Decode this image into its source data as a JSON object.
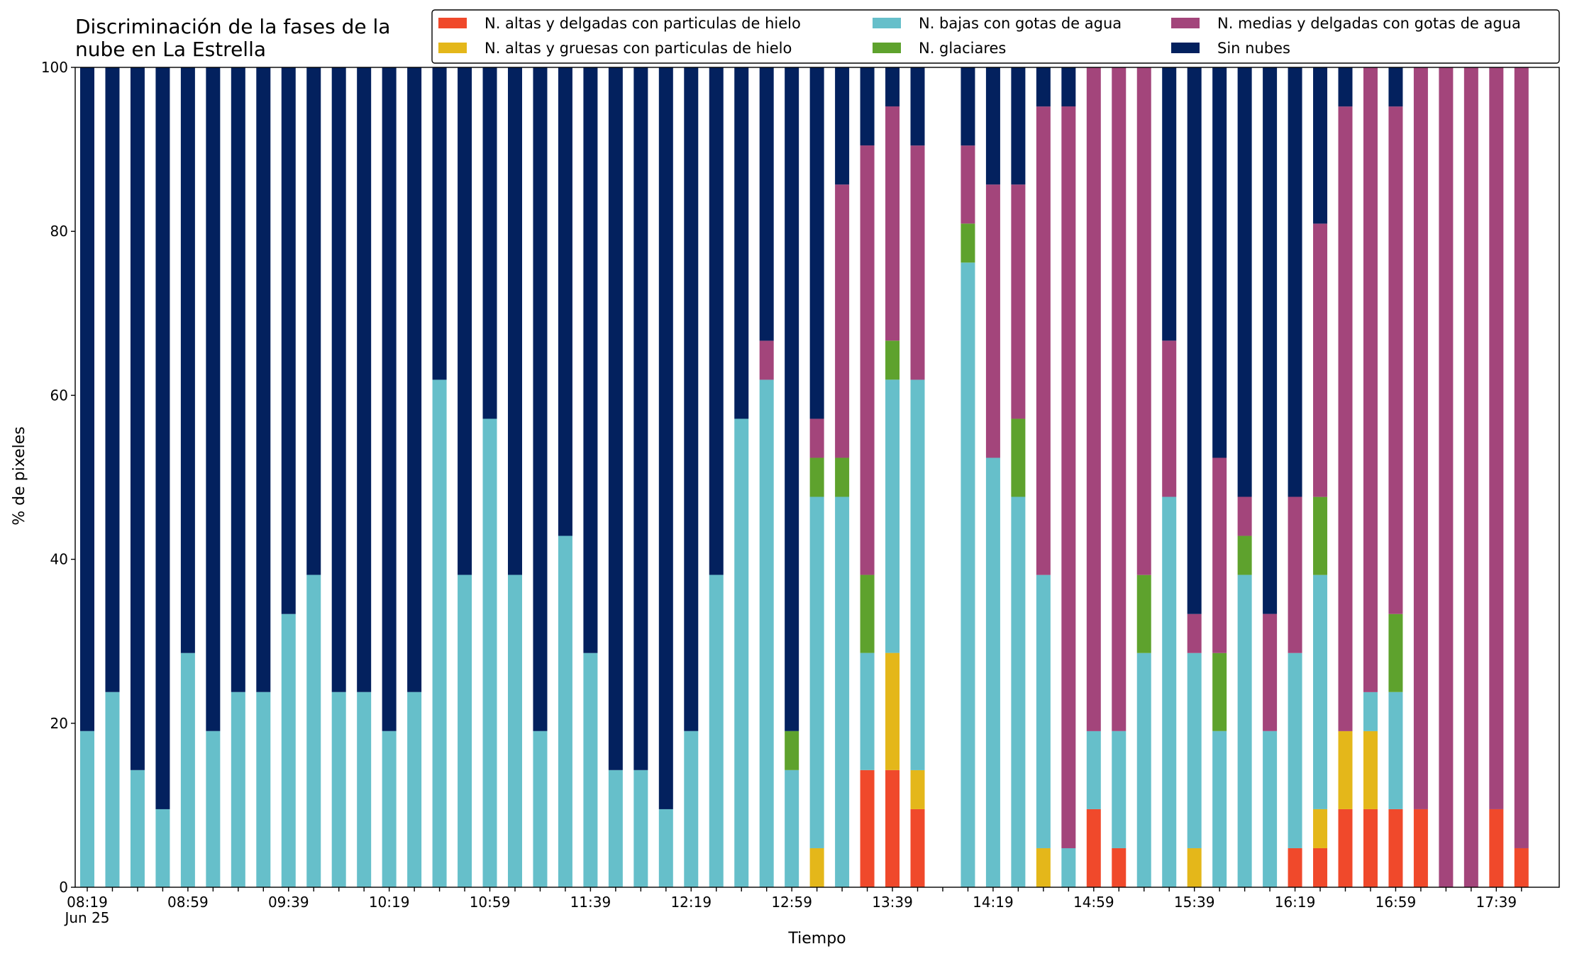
{
  "chart_data": {
    "type": "stacked_bar",
    "title": "Discriminación de la fases de la nube en La Estrella",
    "x_label": "Tiempo",
    "y_label": "% de pixeles",
    "x_sublabel": "Jun 25",
    "categories": [
      "08:19",
      null,
      null,
      null,
      "08:59",
      null,
      null,
      null,
      "09:39",
      null,
      null,
      null,
      "10:19",
      null,
      null,
      null,
      "10:59",
      null,
      null,
      null,
      "11:39",
      null,
      null,
      null,
      "12:19",
      null,
      null,
      null,
      "12:59",
      null,
      null,
      null,
      "13:39",
      null,
      null,
      null,
      "14:19",
      null,
      null,
      null,
      "14:59",
      null,
      null,
      null,
      "15:39",
      null,
      null,
      null,
      "16:19",
      null,
      null,
      null,
      "16:59",
      null,
      null,
      null,
      "17:39",
      null
    ],
    "ylim": [
      0,
      100
    ],
    "yticks": [
      0,
      20,
      40,
      60,
      80,
      100
    ],
    "legend": "top-right",
    "series": [
      {
        "name": "N. altas y delgadas con particulas de hielo",
        "color": "#f0492b",
        "values": [
          0,
          0,
          0,
          0,
          0,
          0,
          0,
          0,
          0,
          0,
          0,
          0,
          0,
          0,
          0,
          0,
          0,
          0,
          0,
          0,
          0,
          0,
          0,
          0,
          0,
          0,
          0,
          0,
          0,
          0,
          0,
          14.29,
          14.29,
          9.52,
          null,
          0,
          0,
          0,
          0,
          0,
          9.52,
          4.76,
          0,
          0,
          0,
          0,
          0,
          0,
          4.76,
          4.76,
          9.52,
          9.52,
          9.52,
          9.52,
          0,
          0,
          9.52,
          4.76
        ]
      },
      {
        "name": "N. altas y gruesas con particulas de hielo",
        "color": "#e4b71a",
        "values": [
          0,
          0,
          0,
          0,
          0,
          0,
          0,
          0,
          0,
          0,
          0,
          0,
          0,
          0,
          0,
          0,
          0,
          0,
          0,
          0,
          0,
          0,
          0,
          0,
          0,
          0,
          0,
          0,
          0,
          4.76,
          0,
          0,
          14.29,
          4.76,
          null,
          0,
          0,
          0,
          4.76,
          0,
          0,
          0,
          0,
          0,
          4.76,
          0,
          0,
          0,
          0,
          4.76,
          9.52,
          9.52,
          0,
          0,
          0,
          0,
          0,
          0
        ]
      },
      {
        "name": "N. bajas con gotas de agua",
        "color": "#66bfca",
        "values": [
          19.05,
          23.81,
          14.29,
          9.52,
          28.57,
          19.05,
          23.81,
          23.81,
          33.33,
          38.1,
          23.81,
          23.81,
          19.05,
          23.81,
          61.9,
          38.1,
          57.14,
          38.1,
          19.05,
          42.86,
          28.57,
          14.29,
          14.29,
          9.52,
          19.05,
          38.1,
          57.14,
          61.9,
          14.29,
          42.86,
          47.62,
          14.29,
          33.33,
          47.62,
          null,
          76.19,
          52.38,
          47.62,
          33.33,
          4.76,
          9.52,
          14.29,
          28.57,
          47.62,
          23.81,
          19.05,
          38.1,
          19.05,
          23.81,
          28.57,
          0,
          4.76,
          14.29,
          0,
          0,
          0,
          0,
          0
        ]
      },
      {
        "name": "N. glaciares",
        "color": "#5ea22d",
        "values": [
          0,
          0,
          0,
          0,
          0,
          0,
          0,
          0,
          0,
          0,
          0,
          0,
          0,
          0,
          0,
          0,
          0,
          0,
          0,
          0,
          0,
          0,
          0,
          0,
          0,
          0,
          0,
          0,
          4.76,
          4.76,
          4.76,
          9.52,
          4.76,
          0,
          null,
          4.76,
          0,
          9.52,
          0,
          0,
          0,
          0,
          9.52,
          0,
          0,
          9.52,
          4.76,
          0,
          0,
          9.52,
          0,
          0,
          9.52,
          0,
          0,
          0,
          0,
          0
        ]
      },
      {
        "name": "N. medias y delgadas con gotas de agua",
        "color": "#a3457b",
        "values": [
          0,
          0,
          0,
          0,
          0,
          0,
          0,
          0,
          0,
          0,
          0,
          0,
          0,
          0,
          0,
          0,
          0,
          0,
          0,
          0,
          0,
          0,
          0,
          0,
          0,
          0,
          0,
          4.76,
          0,
          4.76,
          33.33,
          52.38,
          28.57,
          28.57,
          null,
          9.52,
          33.33,
          28.57,
          57.14,
          90.48,
          80.95,
          80.95,
          61.9,
          19.05,
          4.76,
          23.81,
          4.76,
          14.29,
          19.05,
          33.33,
          76.19,
          76.19,
          61.9,
          90.48,
          100,
          100,
          90.48,
          95.24
        ]
      },
      {
        "name": "Sin nubes",
        "color": "#03215e",
        "values": [
          80.95,
          76.19,
          85.71,
          90.48,
          71.43,
          80.95,
          76.19,
          76.19,
          66.67,
          61.9,
          76.19,
          76.19,
          80.95,
          76.19,
          38.1,
          61.9,
          42.86,
          61.9,
          80.95,
          57.14,
          71.43,
          85.71,
          85.71,
          90.48,
          80.95,
          61.9,
          42.86,
          33.33,
          80.95,
          42.86,
          14.29,
          9.52,
          4.76,
          9.52,
          null,
          9.52,
          14.29,
          14.29,
          4.76,
          4.76,
          0,
          0,
          0,
          33.33,
          66.67,
          47.62,
          52.38,
          66.67,
          52.38,
          19.05,
          4.76,
          0,
          4.76,
          0,
          0,
          0,
          0,
          0
        ]
      }
    ]
  }
}
